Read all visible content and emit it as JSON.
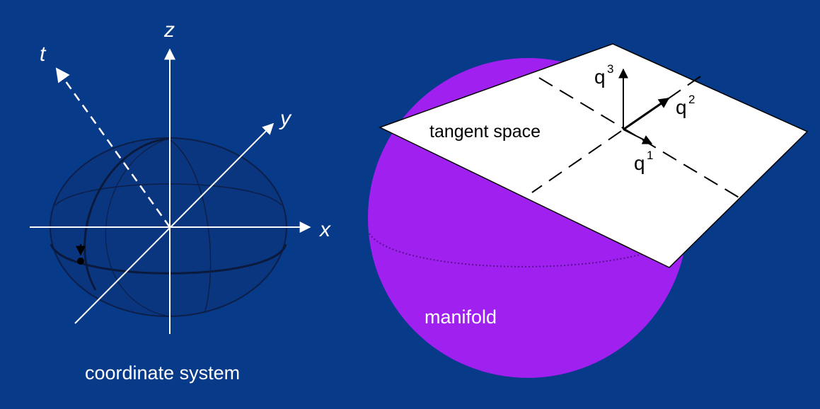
{
  "left_diagram": {
    "axes": {
      "x_label": "x",
      "y_label": "y",
      "z_label": "z",
      "t_label": "t"
    },
    "caption": "coordinate system"
  },
  "right_diagram": {
    "plane_label": "tangent space",
    "surface_label": "manifold",
    "vectors": [
      {
        "base": "q",
        "superscript": "3"
      },
      {
        "base": "q",
        "superscript": "2"
      },
      {
        "base": "q",
        "superscript": "1"
      }
    ]
  },
  "colors": {
    "background": "#073a88",
    "manifold": "#a021f2",
    "plane": "#ffffff",
    "axes": "#ffffff",
    "ellipsoid_lines": "#0a1f4a"
  }
}
